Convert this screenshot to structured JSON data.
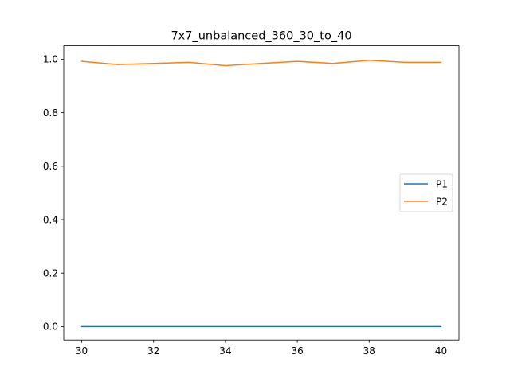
{
  "chart_data": {
    "type": "line",
    "title": "7x7_unbalanced_360_30_to_40",
    "xlabel": "",
    "ylabel": "",
    "x": [
      30,
      31,
      32,
      33,
      34,
      35,
      36,
      37,
      38,
      39,
      40
    ],
    "xlim": [
      29.5,
      40.5
    ],
    "ylim": [
      -0.05,
      1.05
    ],
    "xticks": [
      "30",
      "32",
      "34",
      "36",
      "38",
      "40"
    ],
    "yticks": [
      "0.0",
      "0.2",
      "0.4",
      "0.6",
      "0.8",
      "1.0"
    ],
    "grid": false,
    "legend_position": "center-right",
    "series": [
      {
        "name": "P1",
        "color": "#1f77b4",
        "values": [
          0,
          0,
          0,
          0,
          0,
          0,
          0,
          0,
          0,
          0,
          0
        ]
      },
      {
        "name": "P2",
        "color": "#ff7f0e",
        "values": [
          0.992,
          0.98,
          0.984,
          0.988,
          0.976,
          0.984,
          0.992,
          0.984,
          0.996,
          0.988,
          0.988
        ]
      }
    ]
  }
}
